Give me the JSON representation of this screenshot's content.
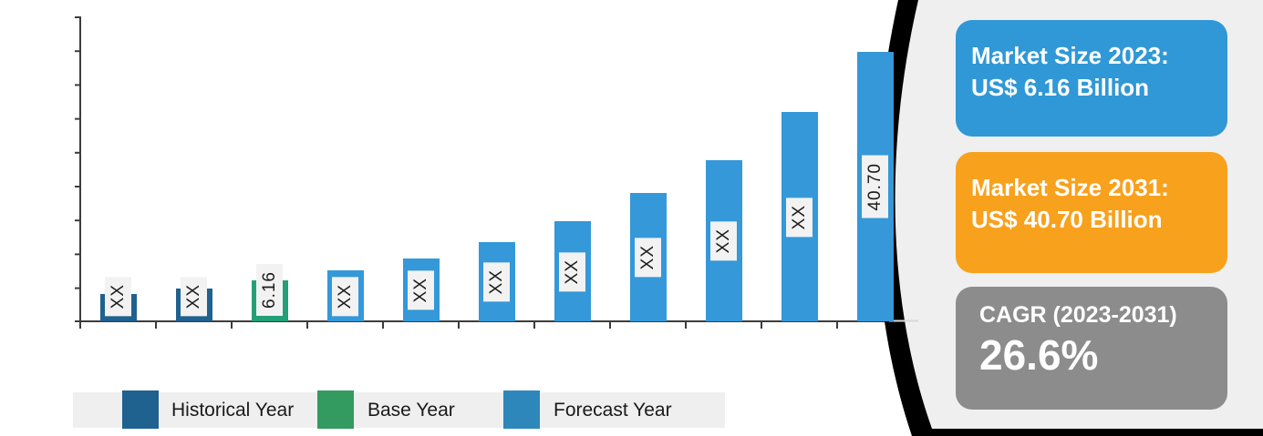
{
  "colors": {
    "historical": "#1f618f",
    "base": "#23a077",
    "forecast": "#3498d9",
    "legend_historical_swatch": "#1f618f",
    "legend_base_swatch": "#339a60",
    "legend_forecast_swatch": "#2e87ba",
    "axis": "#3c3c3c",
    "label_box_bg": "#f2f2f2",
    "label_text": "#1b1b1b",
    "legend_strip_bg": "#efefef",
    "panel_gray": "#efefef",
    "panel_black": "#000000",
    "axis_extension_line": "#d8d8d8",
    "card_blue": "#3098d6",
    "card_orange": "#f8a11d",
    "card_gray": "#8c8c8c",
    "card_text": "#ffffff"
  },
  "chart_data": {
    "type": "bar",
    "title": "",
    "xlabel": "",
    "ylabel": "",
    "ylim": [
      0,
      46
    ],
    "grid": false,
    "tick_labels_visible": false,
    "value_label_rotation": 90,
    "bars": [
      {
        "label": "XX",
        "type": "historical",
        "value": 4.1
      },
      {
        "label": "XX",
        "type": "historical",
        "value": 5.0
      },
      {
        "label": "6.16",
        "type": "base",
        "value": 6.16
      },
      {
        "label": "XX",
        "type": "forecast",
        "value": 7.7
      },
      {
        "label": "XX",
        "type": "forecast",
        "value": 9.5
      },
      {
        "label": "XX",
        "type": "forecast",
        "value": 12.0
      },
      {
        "label": "XX",
        "type": "forecast",
        "value": 15.1
      },
      {
        "label": "XX",
        "type": "forecast",
        "value": 19.4
      },
      {
        "label": "XX",
        "type": "forecast",
        "value": 24.4
      },
      {
        "label": "XX",
        "type": "forecast",
        "value": 31.6
      },
      {
        "label": "40.70",
        "type": "forecast",
        "value": 40.7
      }
    ]
  },
  "legend": {
    "items": [
      {
        "label": "Historical Year",
        "color_key": "legend_historical_swatch"
      },
      {
        "label": "Base Year",
        "color_key": "legend_base_swatch"
      },
      {
        "label": "Forecast Year",
        "color_key": "legend_forecast_swatch"
      }
    ]
  },
  "cards": {
    "market_size_2023": {
      "line1": "Market Size 2023:",
      "line2": "US$ 6.16 Billion"
    },
    "market_size_2031": {
      "line1": "Market Size 2031:",
      "line2": "US$ 40.70 Billion"
    },
    "cagr": {
      "title": "CAGR (2023-2031)",
      "value": "26.6%"
    }
  }
}
